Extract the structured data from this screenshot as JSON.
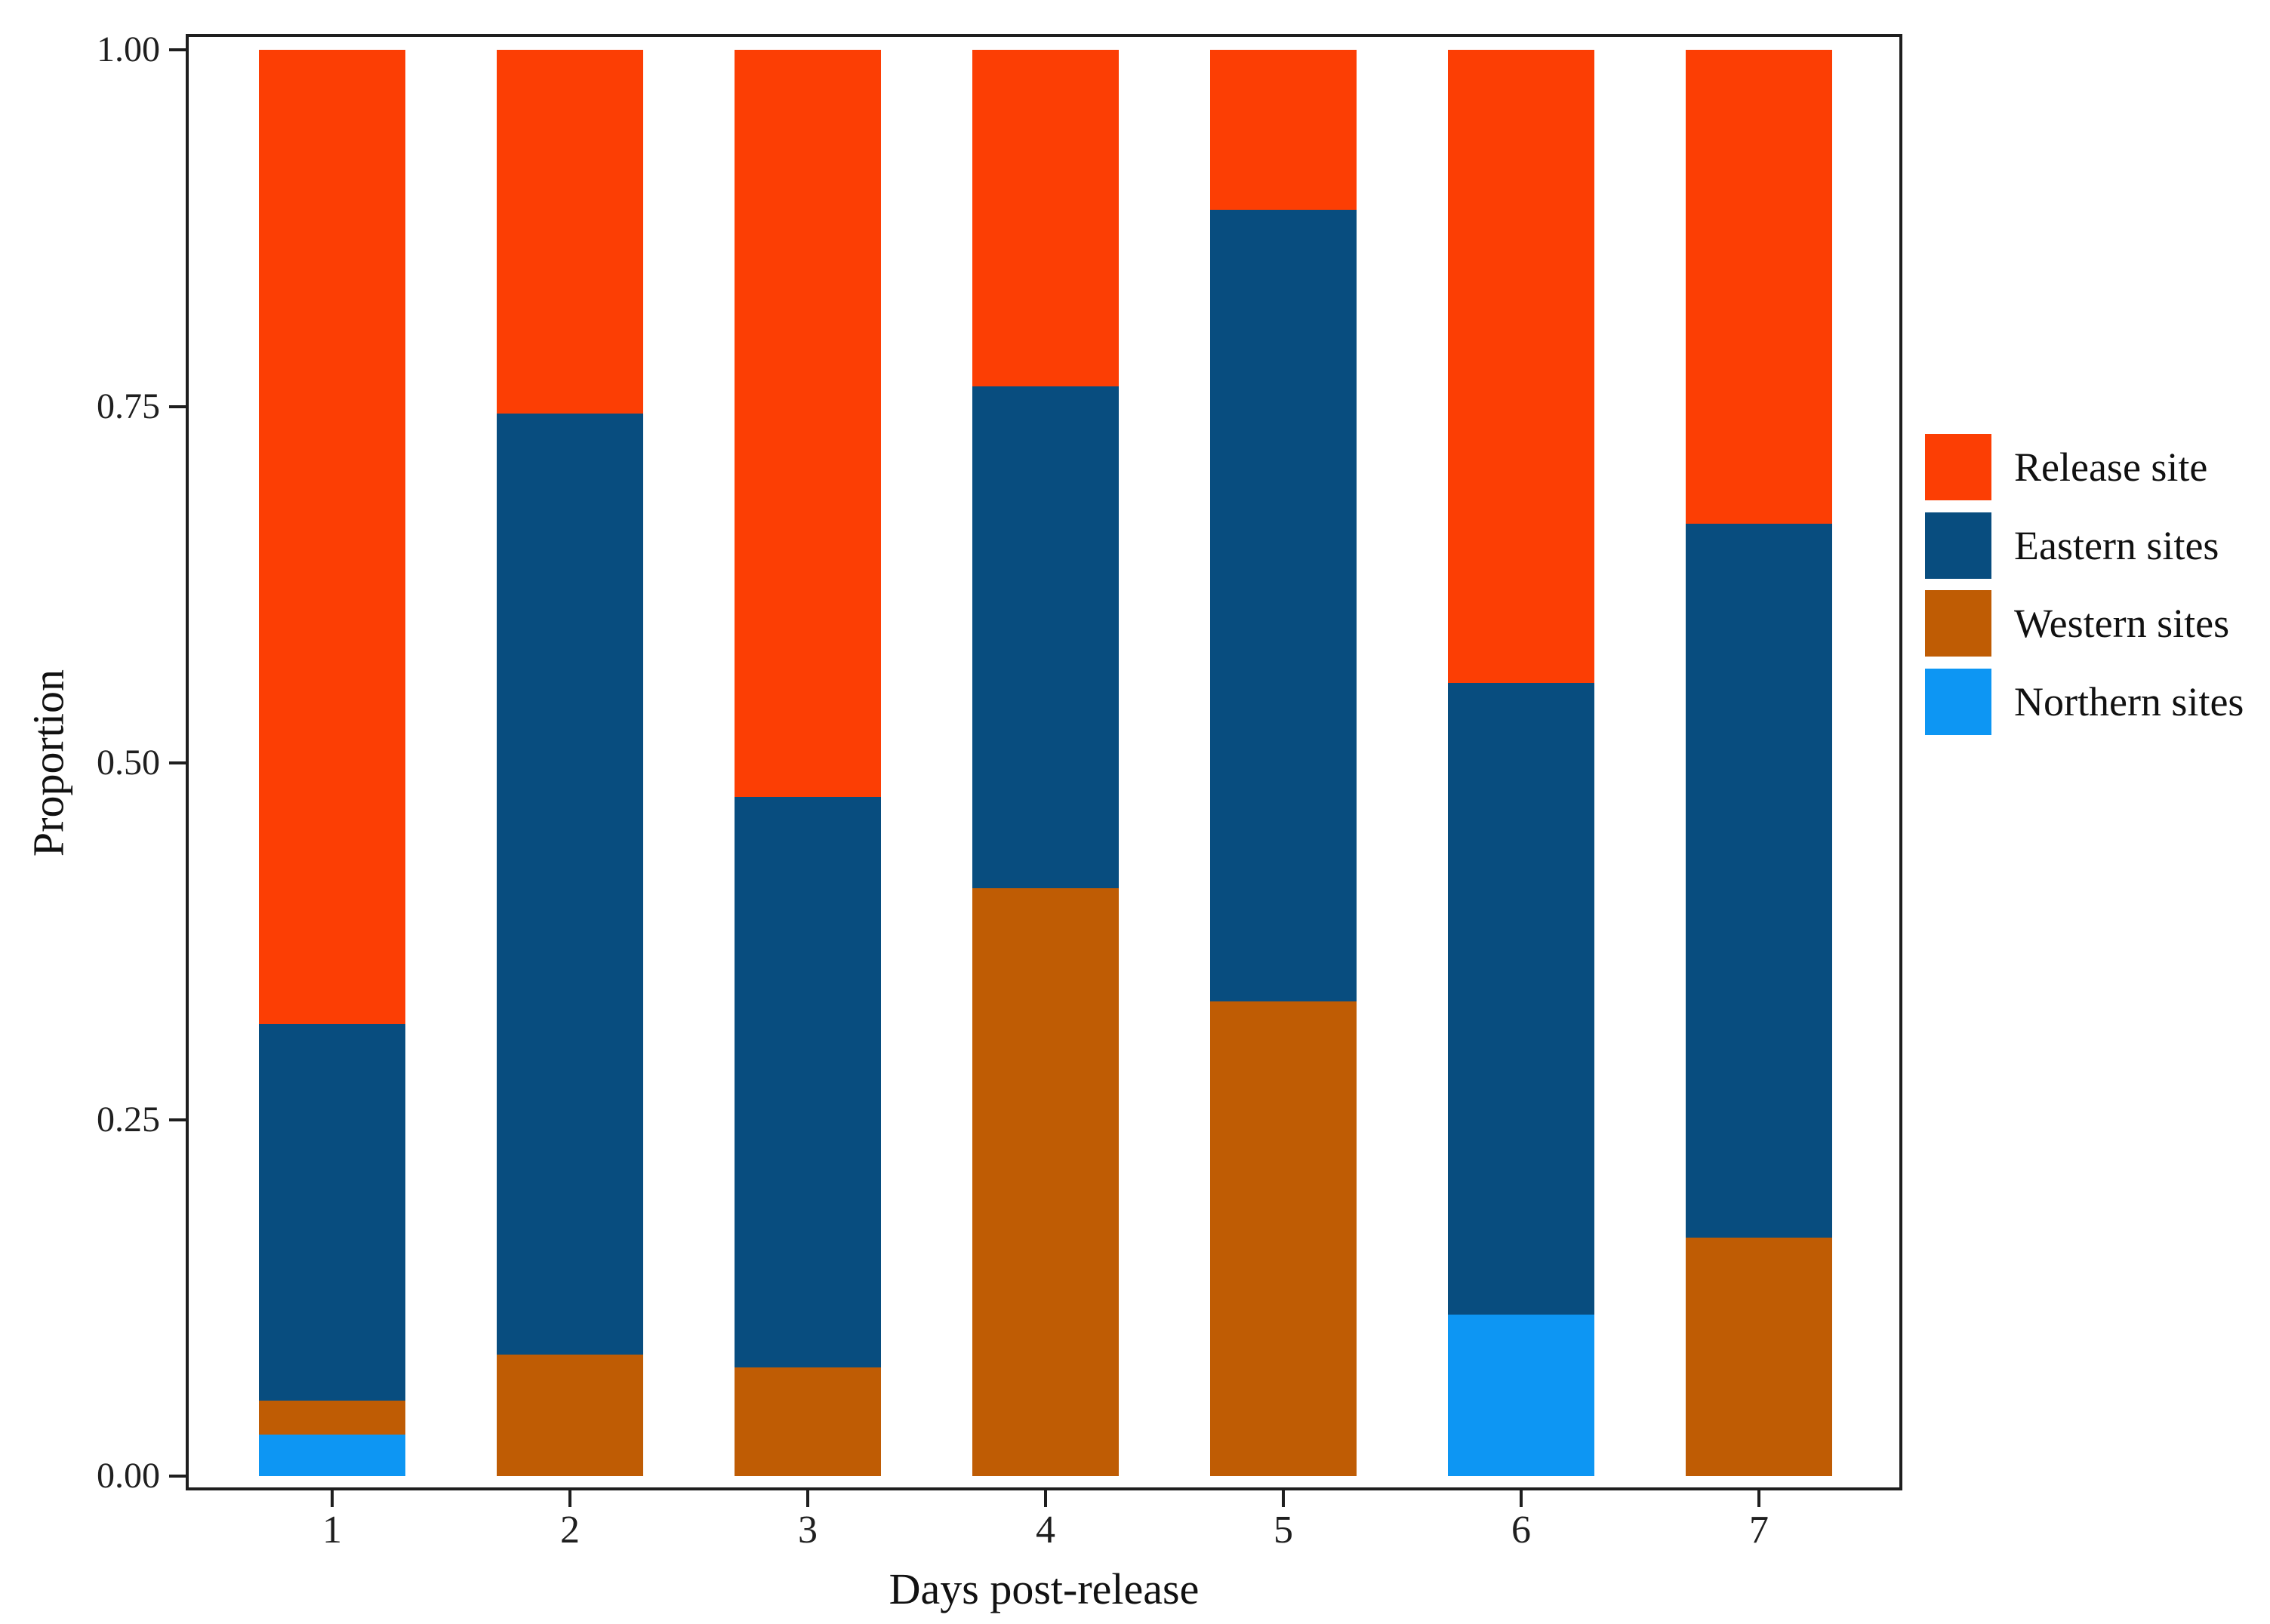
{
  "figure": {
    "background": "#FFFFFF",
    "axis_color": "#1E1E1E",
    "text_color": "#1F1F1F"
  },
  "chart_data": {
    "type": "bar",
    "stacked": true,
    "title": "",
    "xlabel": "Days post-release",
    "ylabel": "Proportion",
    "categories": [
      "1",
      "2",
      "3",
      "4",
      "5",
      "6",
      "7"
    ],
    "ylim": [
      0,
      1
    ],
    "yticks": [
      "0.00",
      "0.25",
      "0.50",
      "0.75",
      "1.00"
    ],
    "grid": false,
    "legend_position": "right",
    "legend": [
      "Release site",
      "Eastern sites",
      "Western sites",
      "Northern sites"
    ],
    "series": [
      {
        "name": "Northern sites",
        "color": "#0D96F3",
        "values": [
          0.029,
          0,
          0,
          0,
          0,
          0.113,
          0
        ]
      },
      {
        "name": "Western sites",
        "color": "#BF5C04",
        "values": [
          0.024,
          0.085,
          0.076,
          0.412,
          0.333,
          0,
          0.167
        ]
      },
      {
        "name": "Eastern sites",
        "color": "#084D7F",
        "values": [
          0.264,
          0.66,
          0.4,
          0.352,
          0.555,
          0.443,
          0.501
        ]
      },
      {
        "name": "Release site",
        "color": "#FC3E04",
        "values": [
          0.683,
          0.255,
          0.524,
          0.236,
          0.112,
          0.444,
          0.332
        ]
      }
    ]
  }
}
